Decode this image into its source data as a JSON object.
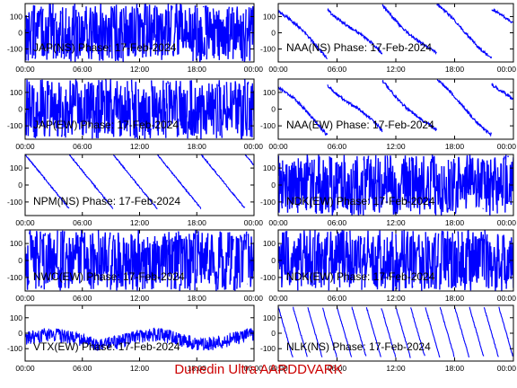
{
  "footer": "Dunedin Ultra AARDDVARK",
  "colors": {
    "trace": "#0000ff",
    "axis": "#000000",
    "footer": "#cc0000"
  },
  "chart_data": [
    {
      "type": "line",
      "title": "JAP(NS) Phase: 17-Feb-2024",
      "pattern": "noise",
      "x_ticks": [
        "00:00",
        "06:00",
        "12:00",
        "18:00",
        "00:00"
      ],
      "y_ticks": [
        100,
        0,
        -100
      ],
      "ylim": [
        -180,
        180
      ]
    },
    {
      "type": "line",
      "title": "NAA(NS) Phase: 17-Feb-2024",
      "pattern": "drift",
      "x_ticks": [
        "00:00",
        "06:00",
        "12:00",
        "18:00",
        "00:00"
      ],
      "y_ticks": [
        100,
        0,
        -100
      ],
      "ylim": [
        -180,
        180
      ]
    },
    {
      "type": "line",
      "title": "JAP(EW) Phase: 17-Feb-2024",
      "pattern": "noise",
      "x_ticks": [
        "00:00",
        "06:00",
        "12:00",
        "18:00",
        "00:00"
      ],
      "y_ticks": [
        100,
        0,
        -100
      ],
      "ylim": [
        -180,
        180
      ]
    },
    {
      "type": "line",
      "title": "NAA(EW) Phase: 17-Feb-2024",
      "pattern": "drift",
      "x_ticks": [
        "00:00",
        "06:00",
        "12:00",
        "18:00",
        "00:00"
      ],
      "y_ticks": [
        100,
        0,
        -100
      ],
      "ylim": [
        -180,
        180
      ]
    },
    {
      "type": "line",
      "title": "NPM(NS) Phase: 17-Feb-2024",
      "pattern": "sawtooth",
      "x_ticks": [
        "00:00",
        "06:00",
        "12:00",
        "18:00",
        "00:00"
      ],
      "y_ticks": [
        100,
        0,
        -100
      ],
      "ylim": [
        -180,
        180
      ]
    },
    {
      "type": "line",
      "title": "NDK(EW) Phase: 17-Feb-2024",
      "pattern": "noise",
      "x_ticks": [
        "00:00",
        "06:00",
        "12:00",
        "18:00",
        "00:00"
      ],
      "y_ticks": [
        100,
        0,
        -100
      ],
      "ylim": [
        -180,
        180
      ]
    },
    {
      "type": "line",
      "title": "NWC(EW) Phase: 17-Feb-2024",
      "pattern": "noise",
      "x_ticks": [
        "00:00",
        "06:00",
        "12:00",
        "18:00",
        "00:00"
      ],
      "y_ticks": [
        100,
        0,
        -100
      ],
      "ylim": [
        -180,
        180
      ]
    },
    {
      "type": "line",
      "title": "NDK(EW) Phase: 17-Feb-2024",
      "pattern": "noise",
      "x_ticks": [
        "00:00",
        "06:00",
        "12:00",
        "18:00",
        "00:00"
      ],
      "y_ticks": [
        100,
        0,
        -100
      ],
      "ylim": [
        -180,
        180
      ]
    },
    {
      "type": "line",
      "title": "VTX(EW) Phase: 17-Feb-2024",
      "pattern": "wave",
      "x_ticks": [
        "00:00",
        "06:00",
        "12:00",
        "18:00",
        "00:00"
      ],
      "y_ticks": [
        100,
        0,
        -100
      ],
      "ylim": [
        -180,
        180
      ]
    },
    {
      "type": "line",
      "title": "NLK(NS) Phase: 17-Feb-2024",
      "pattern": "fast-sawtooth",
      "x_ticks": [
        "00:00",
        "06:00",
        "12:00",
        "18:00",
        "00:00"
      ],
      "y_ticks": [
        100,
        0,
        -100
      ],
      "ylim": [
        -180,
        180
      ]
    }
  ]
}
